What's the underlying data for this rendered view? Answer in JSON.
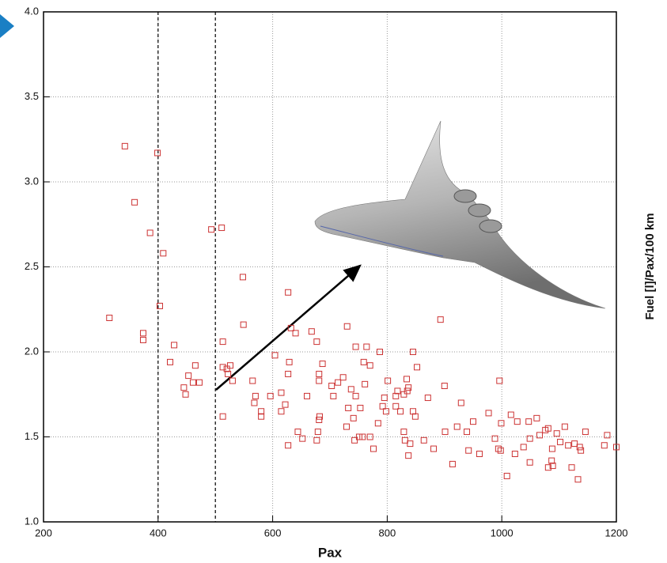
{
  "chart_data": {
    "type": "scatter",
    "x_label": "Pax",
    "y_label": "Fuel [l]/Pax/100 km",
    "xlim": [
      200,
      1200
    ],
    "ylim": [
      1.0,
      4.0
    ],
    "xticks": [
      200,
      400,
      600,
      800,
      1000,
      1200
    ],
    "yticks": [
      {
        "value": 1.0,
        "label": "1.0"
      },
      {
        "value": 1.5,
        "label": "1.5"
      },
      {
        "value": 2.0,
        "label": "2.0"
      },
      {
        "value": 2.5,
        "label": "2.5"
      },
      {
        "value": 3.0,
        "label": "3.0"
      },
      {
        "value": 3.5,
        "label": "3.5"
      },
      {
        "value": 4.0,
        "label": "4.0"
      }
    ],
    "grid": true,
    "vlines": [
      400,
      500
    ],
    "color": "#cc3333",
    "x": [
      315,
      342,
      359,
      386,
      399,
      409,
      403,
      374,
      374,
      428,
      421,
      465,
      453,
      445,
      448,
      461,
      472,
      493,
      511,
      548,
      549,
      513,
      513,
      520,
      526,
      522,
      530,
      565,
      513,
      570,
      568,
      580,
      580,
      596,
      604,
      615,
      622,
      615,
      627,
      632,
      640,
      629,
      627,
      627,
      644,
      668,
      677,
      687,
      681,
      681,
      682,
      681,
      679,
      677,
      652,
      660,
      730,
      745,
      764,
      759,
      770,
      714,
      723,
      703,
      706,
      737,
      745,
      761,
      732,
      753,
      741,
      729,
      751,
      757,
      770,
      743,
      776,
      784,
      787,
      801,
      795,
      792,
      798,
      815,
      815,
      823,
      834,
      835,
      829,
      837,
      818,
      829,
      831,
      840,
      837,
      845,
      852,
      845,
      849,
      871,
      864,
      881,
      893,
      900,
      901,
      914,
      922,
      929,
      939,
      942,
      950,
      961,
      977,
      988,
      994,
      996,
      999,
      998,
      1009,
      1016,
      1027,
      1023,
      1038,
      1049,
      1047,
      1049,
      1061,
      1066,
      1076,
      1081,
      1081,
      1087,
      1088,
      1089,
      1096,
      1102,
      1110,
      1116,
      1122,
      1127,
      1133,
      1138,
      1146,
      1179,
      1184,
      1200,
      1136
    ],
    "y": [
      2.2,
      3.21,
      2.88,
      2.7,
      3.17,
      2.58,
      2.27,
      2.11,
      2.07,
      2.04,
      1.94,
      1.92,
      1.86,
      1.79,
      1.75,
      1.82,
      1.82,
      2.72,
      2.73,
      2.44,
      2.16,
      2.06,
      1.91,
      1.9,
      1.92,
      1.87,
      1.83,
      1.83,
      1.62,
      1.74,
      1.7,
      1.65,
      1.62,
      1.74,
      1.98,
      1.76,
      1.69,
      1.65,
      2.35,
      2.14,
      2.11,
      1.94,
      1.87,
      1.45,
      1.53,
      2.12,
      2.06,
      1.93,
      1.87,
      1.83,
      1.62,
      1.6,
      1.53,
      1.48,
      1.49,
      1.74,
      2.15,
      2.03,
      2.03,
      1.94,
      1.92,
      1.82,
      1.85,
      1.8,
      1.74,
      1.78,
      1.74,
      1.81,
      1.67,
      1.67,
      1.61,
      1.56,
      1.5,
      1.5,
      1.5,
      1.48,
      1.43,
      1.58,
      2.0,
      1.83,
      1.73,
      1.68,
      1.65,
      1.74,
      1.68,
      1.65,
      1.84,
      1.77,
      1.75,
      1.79,
      1.77,
      1.53,
      1.48,
      1.46,
      1.39,
      2.0,
      1.91,
      1.65,
      1.62,
      1.73,
      1.48,
      1.43,
      2.19,
      1.8,
      1.53,
      1.34,
      1.56,
      1.7,
      1.53,
      1.42,
      1.59,
      1.4,
      1.64,
      1.49,
      1.43,
      1.83,
      1.58,
      1.42,
      1.27,
      1.63,
      1.59,
      1.4,
      1.44,
      1.49,
      1.59,
      1.35,
      1.61,
      1.51,
      1.54,
      1.55,
      1.32,
      1.36,
      1.43,
      1.33,
      1.52,
      1.47,
      1.56,
      1.45,
      1.32,
      1.46,
      1.25,
      1.42,
      1.53,
      1.45,
      1.51,
      1.44,
      1.44
    ]
  }
}
